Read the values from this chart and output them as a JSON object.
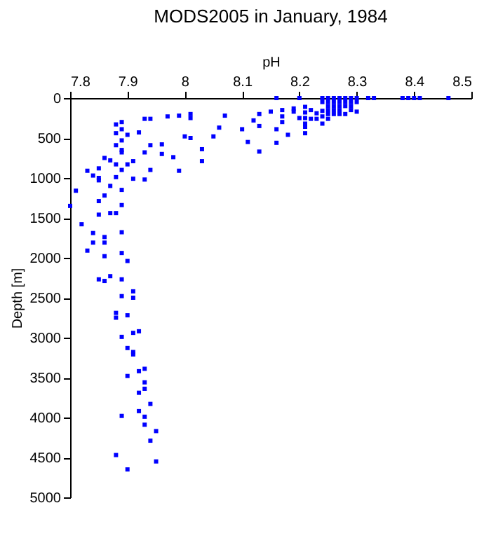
{
  "chart_data": {
    "type": "scatter",
    "title": "MODS2005 in January, 1984",
    "xlabel": "pH",
    "ylabel": "Depth [m]",
    "xlim": [
      7.8,
      8.5
    ],
    "xticks": [
      7.8,
      7.9,
      8,
      8.1,
      8.2,
      8.3,
      8.4,
      8.5
    ],
    "ylim": [
      5000,
      0
    ],
    "yticks": [
      0,
      500,
      1000,
      1500,
      2000,
      2500,
      3000,
      3500,
      4000,
      4500,
      5000
    ],
    "grid": false,
    "marker": "square",
    "series": [
      {
        "color": "#0000ff",
        "x": [
          7.88,
          7.89,
          7.88,
          7.89,
          7.9,
          7.89,
          7.88,
          7.89,
          7.89,
          7.92,
          7.93,
          7.94,
          7.97,
          7.99,
          8.01,
          8.01,
          8.07,
          8.06,
          8.05,
          8,
          8.01,
          8.03,
          8.03,
          7.98,
          7.96,
          7.96,
          7.99,
          7.93,
          7.94,
          7.94,
          7.93,
          7.91,
          7.9,
          7.91,
          7.89,
          7.88,
          7.88,
          7.89,
          7.89,
          7.87,
          7.86,
          7.85,
          7.83,
          7.84,
          7.85,
          7.85,
          7.86,
          7.87,
          7.85,
          7.81,
          7.8,
          7.82,
          7.85,
          7.87,
          7.88,
          7.84,
          7.86,
          7.84,
          7.86,
          7.83,
          7.89,
          7.89,
          7.9,
          7.86,
          7.85,
          7.86,
          7.87,
          7.89,
          7.91,
          7.89,
          7.91,
          7.88,
          7.88,
          7.9,
          7.89,
          7.91,
          7.92,
          7.9,
          7.91,
          7.91,
          7.93,
          7.92,
          7.9,
          7.93,
          7.93,
          7.92,
          7.94,
          7.92,
          7.93,
          7.89,
          7.93,
          7.95,
          7.94,
          7.88,
          7.95,
          7.9,
          8.16,
          8.2,
          8.32,
          8.33,
          8.38,
          8.39,
          8.4,
          8.41,
          8.46,
          8.1,
          8.11,
          8.12,
          8.13,
          8.13,
          8.13,
          8.15,
          8.16,
          8.16,
          8.17,
          8.17,
          8.17,
          8.18,
          8.19,
          8.19,
          8.2,
          8.21,
          8.21,
          8.21,
          8.21,
          8.21,
          8.21,
          8.22,
          8.22,
          8.23,
          8.23,
          8.24,
          8.24,
          8.24,
          8.24,
          8.24,
          8.25,
          8.25,
          8.25,
          8.25,
          8.25,
          8.25,
          8.26,
          8.26,
          8.26,
          8.26,
          8.26,
          8.27,
          8.27,
          8.27,
          8.27,
          8.27,
          8.28,
          8.28,
          8.28,
          8.28,
          8.29,
          8.29,
          8.29,
          8.29,
          8.3,
          8.3,
          8.3
        ],
        "values": [
          330,
          300,
          440,
          390,
          460,
          530,
          590,
          650,
          680,
          430,
          260,
          260,
          230,
          220,
          200,
          250,
          220,
          370,
          480,
          480,
          500,
          640,
          790,
          740,
          580,
          700,
          910,
          680,
          590,
          900,
          1020,
          790,
          830,
          1010,
          900,
          830,
          990,
          1150,
          1340,
          780,
          750,
          880,
          910,
          970,
          1000,
          1030,
          1220,
          1100,
          1290,
          1160,
          1350,
          1580,
          1460,
          1440,
          1440,
          1690,
          1740,
          1810,
          1810,
          1910,
          1680,
          1940,
          2040,
          1980,
          2270,
          2290,
          2230,
          2270,
          2420,
          2480,
          2500,
          2690,
          2750,
          2720,
          2990,
          2940,
          2920,
          3130,
          3180,
          3210,
          3390,
          3420,
          3480,
          3560,
          3640,
          3690,
          3830,
          3920,
          3990,
          3980,
          4090,
          4170,
          4290,
          4470,
          4550,
          4650,
          0,
          0,
          0,
          0,
          0,
          0,
          0,
          0,
          0,
          390,
          550,
          280,
          200,
          350,
          670,
          170,
          390,
          560,
          150,
          230,
          300,
          460,
          130,
          170,
          250,
          110,
          180,
          250,
          320,
          360,
          440,
          150,
          260,
          190,
          260,
          0,
          50,
          160,
          230,
          320,
          0,
          50,
          100,
          150,
          200,
          260,
          0,
          50,
          100,
          150,
          200,
          0,
          50,
          100,
          150,
          200,
          0,
          50,
          100,
          200,
          0,
          50,
          100,
          150,
          0,
          50,
          170
        ]
      }
    ]
  }
}
